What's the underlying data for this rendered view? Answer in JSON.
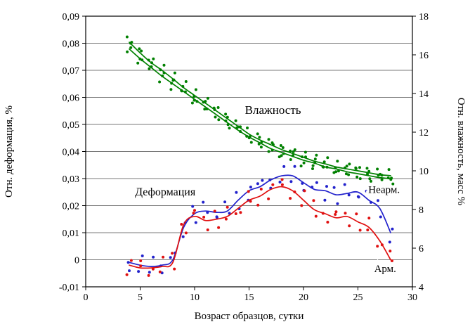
{
  "chart_data": {
    "type": "line",
    "title": "",
    "xlabel": "Возраст образцов, сутки",
    "ylabel_left": "Отн. деформация, %",
    "ylabel_right": "Отн. влажность, масс %",
    "xlim": [
      0,
      30
    ],
    "x_tick_values": [
      0,
      5,
      10,
      15,
      20,
      25,
      30
    ],
    "x_tick_labels": [
      "0",
      "5",
      "10",
      "15",
      "20",
      "25",
      "30"
    ],
    "ylim_left": [
      -0.01,
      0.09
    ],
    "y_left_tick_values": [
      -0.01,
      0,
      0.01,
      0.02,
      0.03,
      0.04,
      0.05,
      0.06,
      0.07,
      0.08,
      0.09
    ],
    "y_left_tick_labels": [
      "-0,01",
      "0",
      "0,01",
      "0,02",
      "0,03",
      "0,04",
      "0,05",
      "0,06",
      "0,07",
      "0,08",
      "0,09"
    ],
    "ylim_right": [
      4,
      18
    ],
    "y_right_tick_values": [
      4,
      6,
      8,
      10,
      12,
      14,
      16,
      18
    ],
    "y_right_tick_labels": [
      "4",
      "6",
      "8",
      "10",
      "12",
      "14",
      "16",
      "18"
    ],
    "grid": true,
    "legend_position": "none",
    "days": [
      4,
      5,
      6,
      7,
      8,
      9,
      10,
      11,
      12,
      13,
      14,
      15,
      16,
      17,
      18,
      19,
      20,
      21,
      22,
      23,
      24,
      25,
      26,
      27,
      28
    ],
    "colors": {
      "humidity": "#008000",
      "nearm": "#2222cc",
      "arm": "#e01010",
      "axis": "#000000",
      "grid": "#4d4d4d",
      "background": "#ffffff"
    },
    "series": [
      {
        "name": "Влажность (верхняя кривая)",
        "axis": "right",
        "color_key": "humidity",
        "jitter": 0.32,
        "dots": 3,
        "values": [
          16.65,
          16.1,
          15.6,
          15.2,
          14.76,
          14.3,
          13.9,
          13.5,
          13.1,
          12.7,
          12.3,
          11.9,
          11.6,
          11.35,
          11.1,
          10.9,
          10.7,
          10.5,
          10.36,
          10.2,
          10.1,
          10.0,
          9.9,
          9.8,
          9.75
        ]
      },
      {
        "name": "Влажность (нижняя кривая)",
        "axis": "right",
        "color_key": "humidity",
        "jitter": 0.3,
        "dots": 2,
        "values": [
          16.3,
          15.8,
          15.35,
          14.9,
          14.5,
          14.1,
          13.7,
          13.3,
          12.9,
          12.5,
          12.1,
          11.75,
          11.45,
          11.15,
          10.95,
          10.75,
          10.55,
          10.4,
          10.2,
          10.1,
          9.95,
          9.85,
          9.75,
          9.65,
          9.6
        ]
      },
      {
        "name": "Деформация Неарм.",
        "axis": "left",
        "color_key": "nearm",
        "jitter": 0.0035,
        "dots": 2,
        "values": [
          -0.001,
          -0.002,
          -0.0025,
          -0.002,
          0,
          0.012,
          0.017,
          0.018,
          0.0175,
          0.018,
          0.022,
          0.0255,
          0.027,
          0.0295,
          0.031,
          0.031,
          0.0285,
          0.026,
          0.0255,
          0.024,
          0.0245,
          0.025,
          0.022,
          0.019,
          0.01
        ]
      },
      {
        "name": "Деформация Арм.",
        "axis": "left",
        "color_key": "arm",
        "jitter": 0.0035,
        "dots": 2,
        "values": [
          -0.002,
          -0.003,
          -0.003,
          -0.0025,
          -0.001,
          0.013,
          0.016,
          0.0145,
          0.015,
          0.016,
          0.019,
          0.022,
          0.0235,
          0.026,
          0.027,
          0.0255,
          0.022,
          0.0185,
          0.017,
          0.0155,
          0.016,
          0.014,
          0.012,
          0.007,
          0
        ]
      }
    ],
    "annotations": [
      {
        "text": "Влажность",
        "x": 17.2,
        "y": 0.0555,
        "size": 17
      },
      {
        "text": "Деформация",
        "x": 7.3,
        "y": 0.0252,
        "size": 16
      },
      {
        "text": "Неарм.",
        "x": 27.4,
        "y": 0.026,
        "size": 15
      },
      {
        "text": "Арм.",
        "x": 27.5,
        "y": -0.0032,
        "size": 15
      }
    ]
  }
}
